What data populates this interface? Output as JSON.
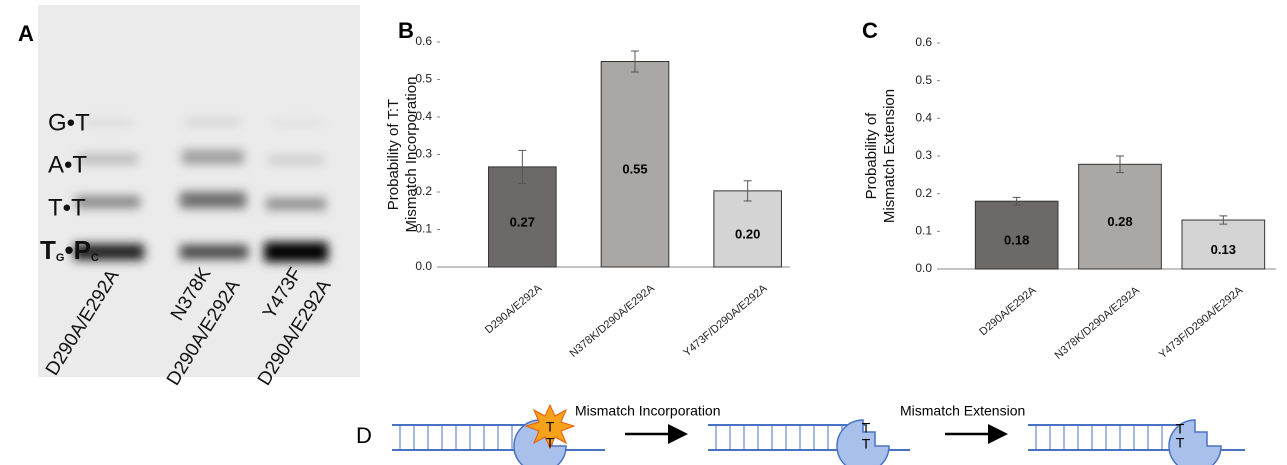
{
  "panels": {
    "a": "A",
    "b": "B",
    "c": "C",
    "d": "D"
  },
  "gel": {
    "band_labels": [
      "G•T",
      "A•T",
      "T•T"
    ],
    "primer_label": [
      "T",
      "G",
      "•",
      "P",
      "C"
    ],
    "lanes": [
      [
        "D290A/E292A"
      ],
      [
        "N378K",
        "D290A/E292A"
      ],
      [
        "Y473F",
        "D290A/E292A"
      ]
    ]
  },
  "chart_data": [
    {
      "type": "bar",
      "ylabel": [
        "Probability of T:T",
        "Mismatch Incorporation"
      ],
      "categories": [
        "D290A/E292A",
        "N378K/D290A/E292A",
        "Y473F/D290A/E292A"
      ],
      "values": [
        0.267,
        0.548,
        0.203
      ],
      "value_labels": [
        "0.27",
        "0.55",
        "0.20"
      ],
      "errors": [
        0.044,
        0.028,
        0.027
      ],
      "colors": [
        "#6d6969",
        "#aba7a5",
        "#d4d4d4"
      ],
      "ylim": [
        0,
        0.6
      ],
      "yticks": [
        {
          "value": 0,
          "label": "0.0"
        },
        0.1,
        0.2,
        0.3,
        0.4,
        0.5,
        0.6
      ]
    },
    {
      "type": "bar",
      "ylabel": [
        "Probability of",
        "Mismatch Extension"
      ],
      "categories": [
        "D290A/E292A",
        "N378K/D290A/E292A",
        "Y473F/D290A/E292A"
      ],
      "values": [
        0.18,
        0.278,
        0.13
      ],
      "value_labels": [
        "0.18",
        "0.28",
        "0.13"
      ],
      "errors": [
        0.01,
        0.022,
        0.011
      ],
      "colors": [
        "#6d6969",
        "#aba7a5",
        "#d4d4d4"
      ],
      "ylim": [
        0,
        0.6
      ],
      "yticks": [
        {
          "value": 0,
          "label": "0.0"
        },
        0.1,
        0.2,
        0.3,
        0.4,
        0.5,
        0.6
      ]
    }
  ],
  "diagram": {
    "steps": [
      "Mismatch Incorporation",
      "Mismatch Extension"
    ],
    "bases": [
      "T",
      "T",
      "T",
      "T",
      "T",
      "T"
    ]
  }
}
